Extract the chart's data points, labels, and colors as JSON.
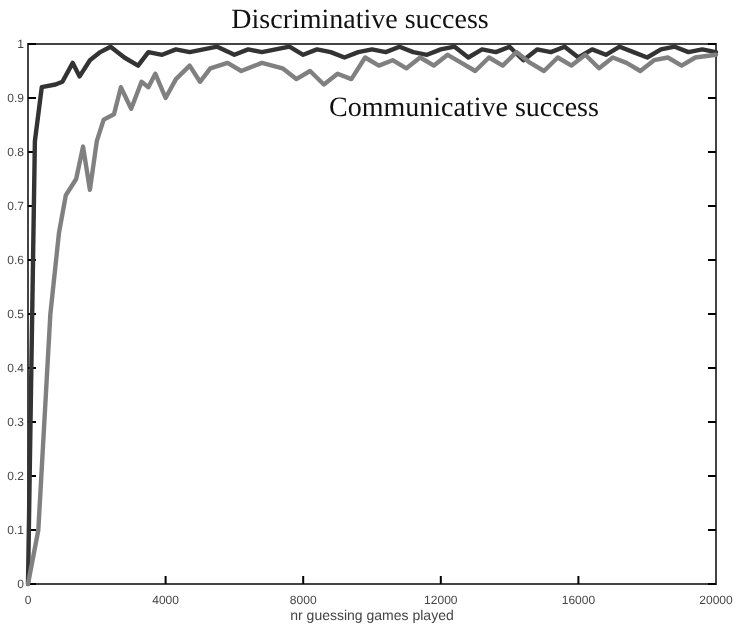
{
  "chart_data": {
    "type": "line",
    "xlabel": "nr guessing games played",
    "xlim": [
      0,
      20000
    ],
    "xticks": [
      0,
      4000,
      8000,
      12000,
      16000,
      20000
    ],
    "ylim": [
      0,
      1
    ],
    "yticks": [
      0,
      0.1,
      0.2,
      0.3,
      0.4,
      0.5,
      0.6,
      0.7,
      0.8,
      0.9,
      1
    ],
    "grid": false,
    "legend": false,
    "marker": "none",
    "line_style": "solid",
    "series": [
      {
        "name": "Discriminative success",
        "color": "#333333",
        "x": [
          0,
          200,
          400,
          800,
          1000,
          1300,
          1500,
          1800,
          2100,
          2400,
          2800,
          3200,
          3500,
          3900,
          4300,
          4700,
          5100,
          5500,
          6000,
          6400,
          6800,
          7200,
          7600,
          8000,
          8400,
          8800,
          9200,
          9600,
          10000,
          10400,
          10800,
          11200,
          11600,
          12000,
          12400,
          12800,
          13200,
          13600,
          14000,
          14400,
          14800,
          15200,
          15600,
          16000,
          16400,
          16800,
          17200,
          17600,
          18000,
          18400,
          18800,
          19200,
          19600,
          20000
        ],
        "values": [
          0,
          0.82,
          0.92,
          0.925,
          0.93,
          0.965,
          0.94,
          0.97,
          0.985,
          0.995,
          0.975,
          0.96,
          0.985,
          0.98,
          0.99,
          0.985,
          0.99,
          0.995,
          0.98,
          0.99,
          0.985,
          0.99,
          0.995,
          0.98,
          0.99,
          0.985,
          0.975,
          0.985,
          0.99,
          0.985,
          0.995,
          0.985,
          0.98,
          0.99,
          0.995,
          0.975,
          0.99,
          0.985,
          0.995,
          0.97,
          0.99,
          0.985,
          0.995,
          0.975,
          0.99,
          0.98,
          0.995,
          0.985,
          0.975,
          0.99,
          0.995,
          0.985,
          0.99,
          0.985
        ]
      },
      {
        "name": "Communicative success",
        "color": "#808080",
        "x": [
          0,
          300,
          650,
          900,
          1100,
          1400,
          1600,
          1800,
          2000,
          2200,
          2500,
          2700,
          3000,
          3300,
          3500,
          3700,
          4000,
          4300,
          4700,
          5000,
          5300,
          5800,
          6200,
          6800,
          7400,
          7800,
          8200,
          8600,
          9000,
          9400,
          9800,
          10200,
          10600,
          11000,
          11400,
          11800,
          12200,
          12600,
          13000,
          13400,
          13800,
          14200,
          14600,
          15000,
          15400,
          15800,
          16200,
          16600,
          17000,
          17400,
          17800,
          18200,
          18600,
          19000,
          19400,
          20000
        ],
        "values": [
          0,
          0.1,
          0.5,
          0.65,
          0.72,
          0.75,
          0.81,
          0.73,
          0.82,
          0.86,
          0.87,
          0.92,
          0.88,
          0.93,
          0.92,
          0.945,
          0.9,
          0.935,
          0.96,
          0.93,
          0.955,
          0.965,
          0.95,
          0.965,
          0.955,
          0.935,
          0.95,
          0.925,
          0.945,
          0.935,
          0.975,
          0.96,
          0.97,
          0.955,
          0.975,
          0.96,
          0.98,
          0.965,
          0.95,
          0.975,
          0.96,
          0.985,
          0.965,
          0.95,
          0.975,
          0.96,
          0.98,
          0.955,
          0.975,
          0.965,
          0.95,
          0.97,
          0.975,
          0.96,
          0.975,
          0.98
        ]
      }
    ]
  }
}
